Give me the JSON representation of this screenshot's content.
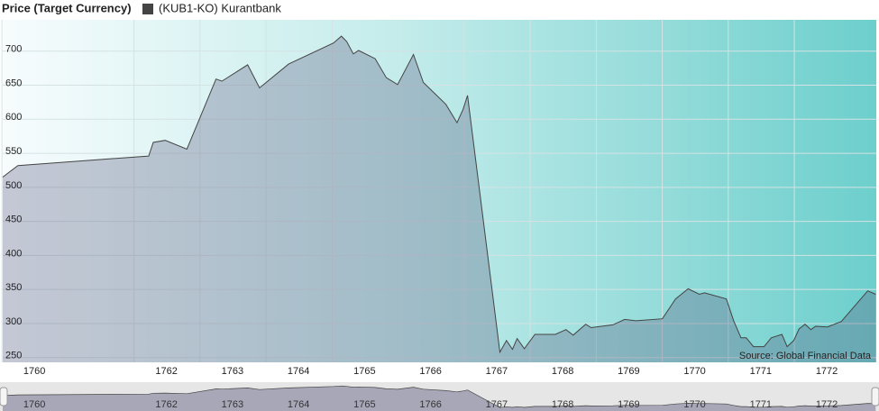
{
  "chart_data": {
    "type": "area",
    "title": "Price (Target Currency)",
    "source": "Source: Global Financial Data",
    "x": [
      1759.52,
      1759.75,
      1761.73,
      1761.8,
      1761.98,
      1762.31,
      1762.75,
      1762.84,
      1763.23,
      1763.41,
      1763.85,
      1764.53,
      1764.65,
      1764.73,
      1764.83,
      1764.91,
      1765.16,
      1765.33,
      1765.5,
      1765.74,
      1765.89,
      1766.23,
      1766.4,
      1766.49,
      1766.56,
      1767.05,
      1767.15,
      1767.24,
      1767.31,
      1767.42,
      1767.58,
      1767.89,
      1768.05,
      1768.16,
      1768.35,
      1768.43,
      1768.76,
      1768.94,
      1769.11,
      1769.51,
      1769.71,
      1769.9,
      1770.07,
      1770.15,
      1770.48,
      1770.59,
      1770.7,
      1770.78,
      1770.89,
      1771.05,
      1771.16,
      1771.32,
      1771.4,
      1771.5,
      1771.58,
      1771.67,
      1771.76,
      1771.83,
      1772.01,
      1772.22,
      1772.62,
      1772.74
    ],
    "series": [
      {
        "name": "(KUB1-KO) Kurantbank",
        "color": "#444444",
        "values": [
          515,
          532,
          546,
          566,
          569,
          556,
          659,
          656,
          680,
          646,
          681,
          712,
          722,
          714,
          696,
          701,
          689,
          661,
          651,
          695,
          654,
          622,
          595,
          614,
          635,
          258,
          275,
          262,
          278,
          263,
          284,
          284,
          291,
          283,
          299,
          294,
          298,
          306,
          304,
          307,
          336,
          351,
          343,
          345,
          336,
          304,
          279,
          279,
          266,
          266,
          279,
          284,
          266,
          275,
          292,
          299,
          291,
          296,
          295,
          303,
          348,
          343
        ]
      }
    ],
    "xlim": [
      1759.52,
      1772.75
    ],
    "ylim": [
      243,
      746
    ],
    "xticks": [
      1760,
      1762,
      1763,
      1764,
      1765,
      1766,
      1767,
      1768,
      1769,
      1770,
      1771,
      1772
    ],
    "yticks": [
      250,
      300,
      350,
      400,
      450,
      500,
      550,
      600,
      650,
      700
    ],
    "grid": true
  }
}
